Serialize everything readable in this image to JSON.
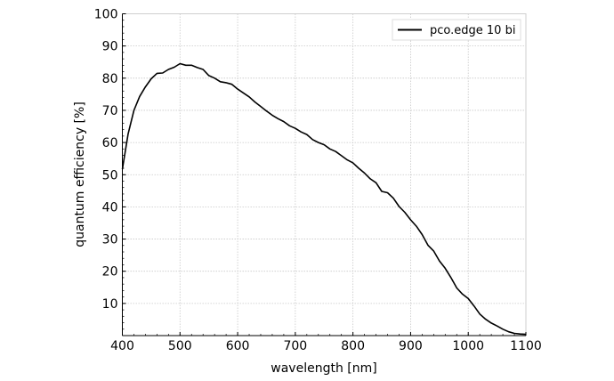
{
  "chart_data": {
    "type": "line",
    "title": "",
    "xlabel": "wavelength [nm]",
    "ylabel": "quantum efficiency [%]",
    "xlim": [
      400,
      1100
    ],
    "ylim": [
      0,
      100
    ],
    "xticks": [
      400,
      500,
      600,
      700,
      800,
      900,
      1000,
      1100
    ],
    "yticks": [
      10,
      20,
      30,
      40,
      50,
      60,
      70,
      80,
      90,
      100
    ],
    "grid": true,
    "legend_position": "top-right",
    "series": [
      {
        "name": "pco.edge 10 bi",
        "color": "#000000",
        "x": [
          400,
          410,
          420,
          430,
          440,
          450,
          460,
          470,
          480,
          490,
          500,
          510,
          520,
          530,
          540,
          550,
          560,
          570,
          580,
          590,
          600,
          610,
          620,
          630,
          640,
          650,
          660,
          670,
          680,
          690,
          700,
          710,
          720,
          730,
          740,
          750,
          760,
          770,
          780,
          790,
          800,
          810,
          820,
          830,
          840,
          850,
          860,
          870,
          880,
          890,
          900,
          910,
          920,
          930,
          940,
          950,
          960,
          970,
          980,
          990,
          1000,
          1010,
          1020,
          1030,
          1040,
          1050,
          1060,
          1070,
          1080,
          1090,
          1100
        ],
        "y": [
          51.7,
          62.7,
          70,
          74.3,
          77.3,
          79.8,
          81.5,
          81.6,
          82.7,
          83.4,
          84.5,
          84,
          84,
          83.3,
          82.7,
          80.8,
          80,
          78.9,
          78.6,
          78.1,
          76.6,
          75.4,
          74.2,
          72.6,
          71.2,
          69.8,
          68.5,
          67.4,
          66.5,
          65.2,
          64.4,
          63.3,
          62.5,
          60.9,
          60,
          59.3,
          58,
          57.2,
          55.9,
          54.6,
          53.7,
          52,
          50.5,
          48.7,
          47.5,
          44.8,
          44.4,
          42.7,
          40.1,
          38.3,
          36,
          34,
          31.4,
          28.1,
          26.3,
          23.2,
          20.9,
          18,
          14.8,
          12.9,
          11.5,
          9.2,
          6.7,
          5.1,
          3.9,
          3,
          2,
          1.2,
          0.7,
          0.5,
          0.4
        ]
      }
    ]
  }
}
